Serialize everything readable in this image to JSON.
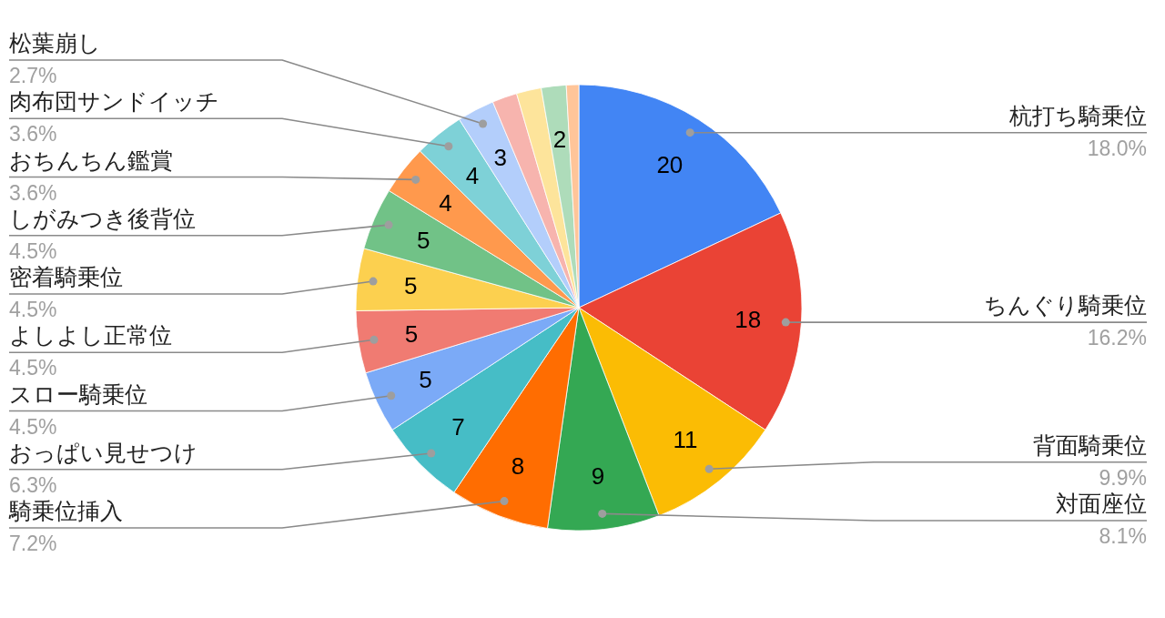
{
  "chart_data": {
    "type": "pie",
    "categories": [
      "杭打ち騎乗位",
      "ちんぐり騎乗位",
      "背面騎乗位",
      "対面座位",
      "騎乗位挿入",
      "おっぱい見せつけ",
      "スロー騎乗位",
      "よしよし正常位",
      "密着騎乗位",
      "しがみつき後背位",
      "おちんちん鑑賞",
      "肉布団サンドイッチ",
      "松葉崩し",
      null,
      null,
      null,
      null
    ],
    "values": [
      20,
      18,
      11,
      9,
      8,
      7,
      5,
      5,
      5,
      5,
      4,
      4,
      3,
      2,
      2,
      2,
      1
    ],
    "colors": [
      "#4285f4",
      "#ea4335",
      "#fbbc04",
      "#34a853",
      "#ff6d01",
      "#46bdc6",
      "#7baaf7",
      "#f07b72",
      "#fcd04f",
      "#71c287",
      "#ff994d",
      "#7ed1d7",
      "#b3cefb",
      "#f7b4ae",
      "#fde49b",
      "#aedcba",
      "#ffc599"
    ],
    "value_labels": [
      "20",
      "18",
      "11",
      "9",
      "8",
      "7",
      "5",
      "5",
      "5",
      "5",
      "4",
      "4",
      "3",
      null,
      null,
      "2",
      null
    ],
    "annotations": [
      "18.0%",
      "16.2%",
      "9.9%",
      "8.1%",
      "7.2%",
      "6.3%",
      "4.5%",
      "4.5%",
      "4.5%",
      "4.5%",
      "3.6%",
      "3.6%",
      "2.7%"
    ]
  }
}
